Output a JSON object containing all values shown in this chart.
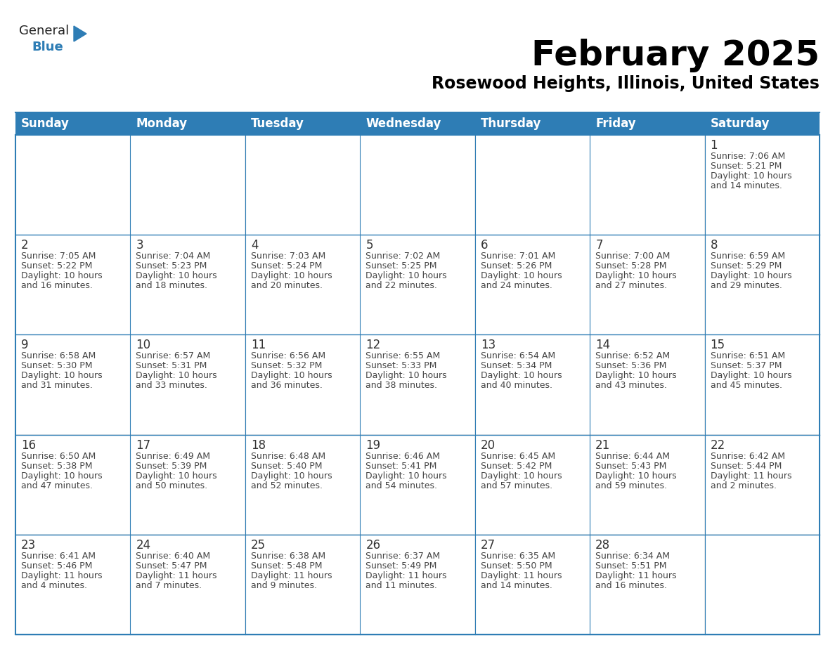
{
  "title": "February 2025",
  "subtitle": "Rosewood Heights, Illinois, United States",
  "header_bg": "#2E7DB5",
  "header_text_color": "#FFFFFF",
  "cell_bg_white": "#FFFFFF",
  "cell_bg_gray": "#EBEBEB",
  "border_color": "#2E7DB5",
  "day_number_color": "#333333",
  "text_color": "#444444",
  "days_of_week": [
    "Sunday",
    "Monday",
    "Tuesday",
    "Wednesday",
    "Thursday",
    "Friday",
    "Saturday"
  ],
  "weeks": [
    [
      {
        "day": "",
        "info": ""
      },
      {
        "day": "",
        "info": ""
      },
      {
        "day": "",
        "info": ""
      },
      {
        "day": "",
        "info": ""
      },
      {
        "day": "",
        "info": ""
      },
      {
        "day": "",
        "info": ""
      },
      {
        "day": "1",
        "info": "Sunrise: 7:06 AM\nSunset: 5:21 PM\nDaylight: 10 hours\nand 14 minutes."
      }
    ],
    [
      {
        "day": "2",
        "info": "Sunrise: 7:05 AM\nSunset: 5:22 PM\nDaylight: 10 hours\nand 16 minutes."
      },
      {
        "day": "3",
        "info": "Sunrise: 7:04 AM\nSunset: 5:23 PM\nDaylight: 10 hours\nand 18 minutes."
      },
      {
        "day": "4",
        "info": "Sunrise: 7:03 AM\nSunset: 5:24 PM\nDaylight: 10 hours\nand 20 minutes."
      },
      {
        "day": "5",
        "info": "Sunrise: 7:02 AM\nSunset: 5:25 PM\nDaylight: 10 hours\nand 22 minutes."
      },
      {
        "day": "6",
        "info": "Sunrise: 7:01 AM\nSunset: 5:26 PM\nDaylight: 10 hours\nand 24 minutes."
      },
      {
        "day": "7",
        "info": "Sunrise: 7:00 AM\nSunset: 5:28 PM\nDaylight: 10 hours\nand 27 minutes."
      },
      {
        "day": "8",
        "info": "Sunrise: 6:59 AM\nSunset: 5:29 PM\nDaylight: 10 hours\nand 29 minutes."
      }
    ],
    [
      {
        "day": "9",
        "info": "Sunrise: 6:58 AM\nSunset: 5:30 PM\nDaylight: 10 hours\nand 31 minutes."
      },
      {
        "day": "10",
        "info": "Sunrise: 6:57 AM\nSunset: 5:31 PM\nDaylight: 10 hours\nand 33 minutes."
      },
      {
        "day": "11",
        "info": "Sunrise: 6:56 AM\nSunset: 5:32 PM\nDaylight: 10 hours\nand 36 minutes."
      },
      {
        "day": "12",
        "info": "Sunrise: 6:55 AM\nSunset: 5:33 PM\nDaylight: 10 hours\nand 38 minutes."
      },
      {
        "day": "13",
        "info": "Sunrise: 6:54 AM\nSunset: 5:34 PM\nDaylight: 10 hours\nand 40 minutes."
      },
      {
        "day": "14",
        "info": "Sunrise: 6:52 AM\nSunset: 5:36 PM\nDaylight: 10 hours\nand 43 minutes."
      },
      {
        "day": "15",
        "info": "Sunrise: 6:51 AM\nSunset: 5:37 PM\nDaylight: 10 hours\nand 45 minutes."
      }
    ],
    [
      {
        "day": "16",
        "info": "Sunrise: 6:50 AM\nSunset: 5:38 PM\nDaylight: 10 hours\nand 47 minutes."
      },
      {
        "day": "17",
        "info": "Sunrise: 6:49 AM\nSunset: 5:39 PM\nDaylight: 10 hours\nand 50 minutes."
      },
      {
        "day": "18",
        "info": "Sunrise: 6:48 AM\nSunset: 5:40 PM\nDaylight: 10 hours\nand 52 minutes."
      },
      {
        "day": "19",
        "info": "Sunrise: 6:46 AM\nSunset: 5:41 PM\nDaylight: 10 hours\nand 54 minutes."
      },
      {
        "day": "20",
        "info": "Sunrise: 6:45 AM\nSunset: 5:42 PM\nDaylight: 10 hours\nand 57 minutes."
      },
      {
        "day": "21",
        "info": "Sunrise: 6:44 AM\nSunset: 5:43 PM\nDaylight: 10 hours\nand 59 minutes."
      },
      {
        "day": "22",
        "info": "Sunrise: 6:42 AM\nSunset: 5:44 PM\nDaylight: 11 hours\nand 2 minutes."
      }
    ],
    [
      {
        "day": "23",
        "info": "Sunrise: 6:41 AM\nSunset: 5:46 PM\nDaylight: 11 hours\nand 4 minutes."
      },
      {
        "day": "24",
        "info": "Sunrise: 6:40 AM\nSunset: 5:47 PM\nDaylight: 11 hours\nand 7 minutes."
      },
      {
        "day": "25",
        "info": "Sunrise: 6:38 AM\nSunset: 5:48 PM\nDaylight: 11 hours\nand 9 minutes."
      },
      {
        "day": "26",
        "info": "Sunrise: 6:37 AM\nSunset: 5:49 PM\nDaylight: 11 hours\nand 11 minutes."
      },
      {
        "day": "27",
        "info": "Sunrise: 6:35 AM\nSunset: 5:50 PM\nDaylight: 11 hours\nand 14 minutes."
      },
      {
        "day": "28",
        "info": "Sunrise: 6:34 AM\nSunset: 5:51 PM\nDaylight: 11 hours\nand 16 minutes."
      },
      {
        "day": "",
        "info": ""
      }
    ]
  ],
  "logo_text1": "General",
  "logo_text2": "Blue",
  "logo_color1": "#222222",
  "logo_color2": "#2E7DB5",
  "logo_triangle_color": "#2E7DB5",
  "title_fontsize": 36,
  "subtitle_fontsize": 17,
  "header_fontsize": 12,
  "day_num_fontsize": 12,
  "info_fontsize": 9
}
